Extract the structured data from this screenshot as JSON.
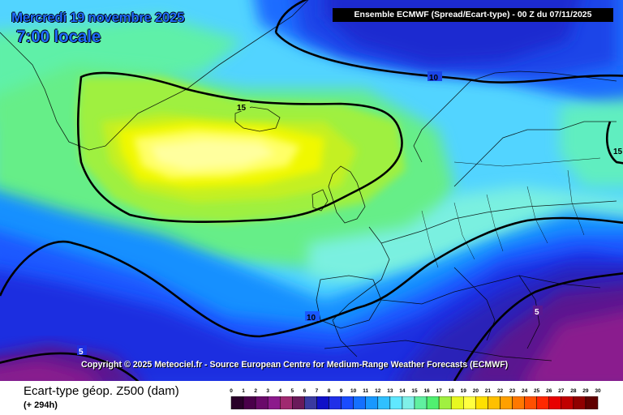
{
  "header": {
    "date": "Mercredi 19 novembre 2025",
    "local_time": "7:00 locale",
    "model_info": "Ensemble ECMWF  (Spread/Ecart-type) - 00 Z du 07/11/2025"
  },
  "footer": {
    "copyright": "Copyright © 2025 Meteociel.fr - Source European Centre for Medium-Range Weather Forecasts (ECMWF)",
    "variable": "Ecart-type géop. Z500 (dam)",
    "lead_time": "(+ 294h)"
  },
  "map": {
    "contour_labels": [
      {
        "text": "10",
        "value": 10
      },
      {
        "text": "15",
        "value": 15
      },
      {
        "text": "10",
        "value": 10
      },
      {
        "text": "5",
        "value": 5
      },
      {
        "text": "5",
        "value": 5
      },
      {
        "text": "15",
        "value": 15
      }
    ]
  },
  "scale": {
    "labels": [
      "0",
      "1",
      "2",
      "3",
      "4",
      "5",
      "6",
      "7",
      "8",
      "9",
      "10",
      "11",
      "12",
      "13",
      "14",
      "15",
      "16",
      "17",
      "18",
      "19",
      "20",
      "21",
      "22",
      "23",
      "24",
      "25",
      "26",
      "27",
      "28",
      "29",
      "30"
    ],
    "colors": [
      "#2a002a",
      "#4a004a",
      "#6a0a6a",
      "#8c1a8c",
      "#a02a70",
      "#6a1a5a",
      "#3a3aa0",
      "#1010c8",
      "#2030e8",
      "#1a4cff",
      "#1470ff",
      "#1898ff",
      "#30c0ff",
      "#60e8ff",
      "#80f0e8",
      "#60f0a0",
      "#50f070",
      "#a0f040",
      "#e8f820",
      "#ffff40",
      "#ffe000",
      "#ffc000",
      "#ffa000",
      "#ff7800",
      "#ff5000",
      "#ff2800",
      "#e80000",
      "#c00000",
      "#900000",
      "#600000"
    ]
  }
}
